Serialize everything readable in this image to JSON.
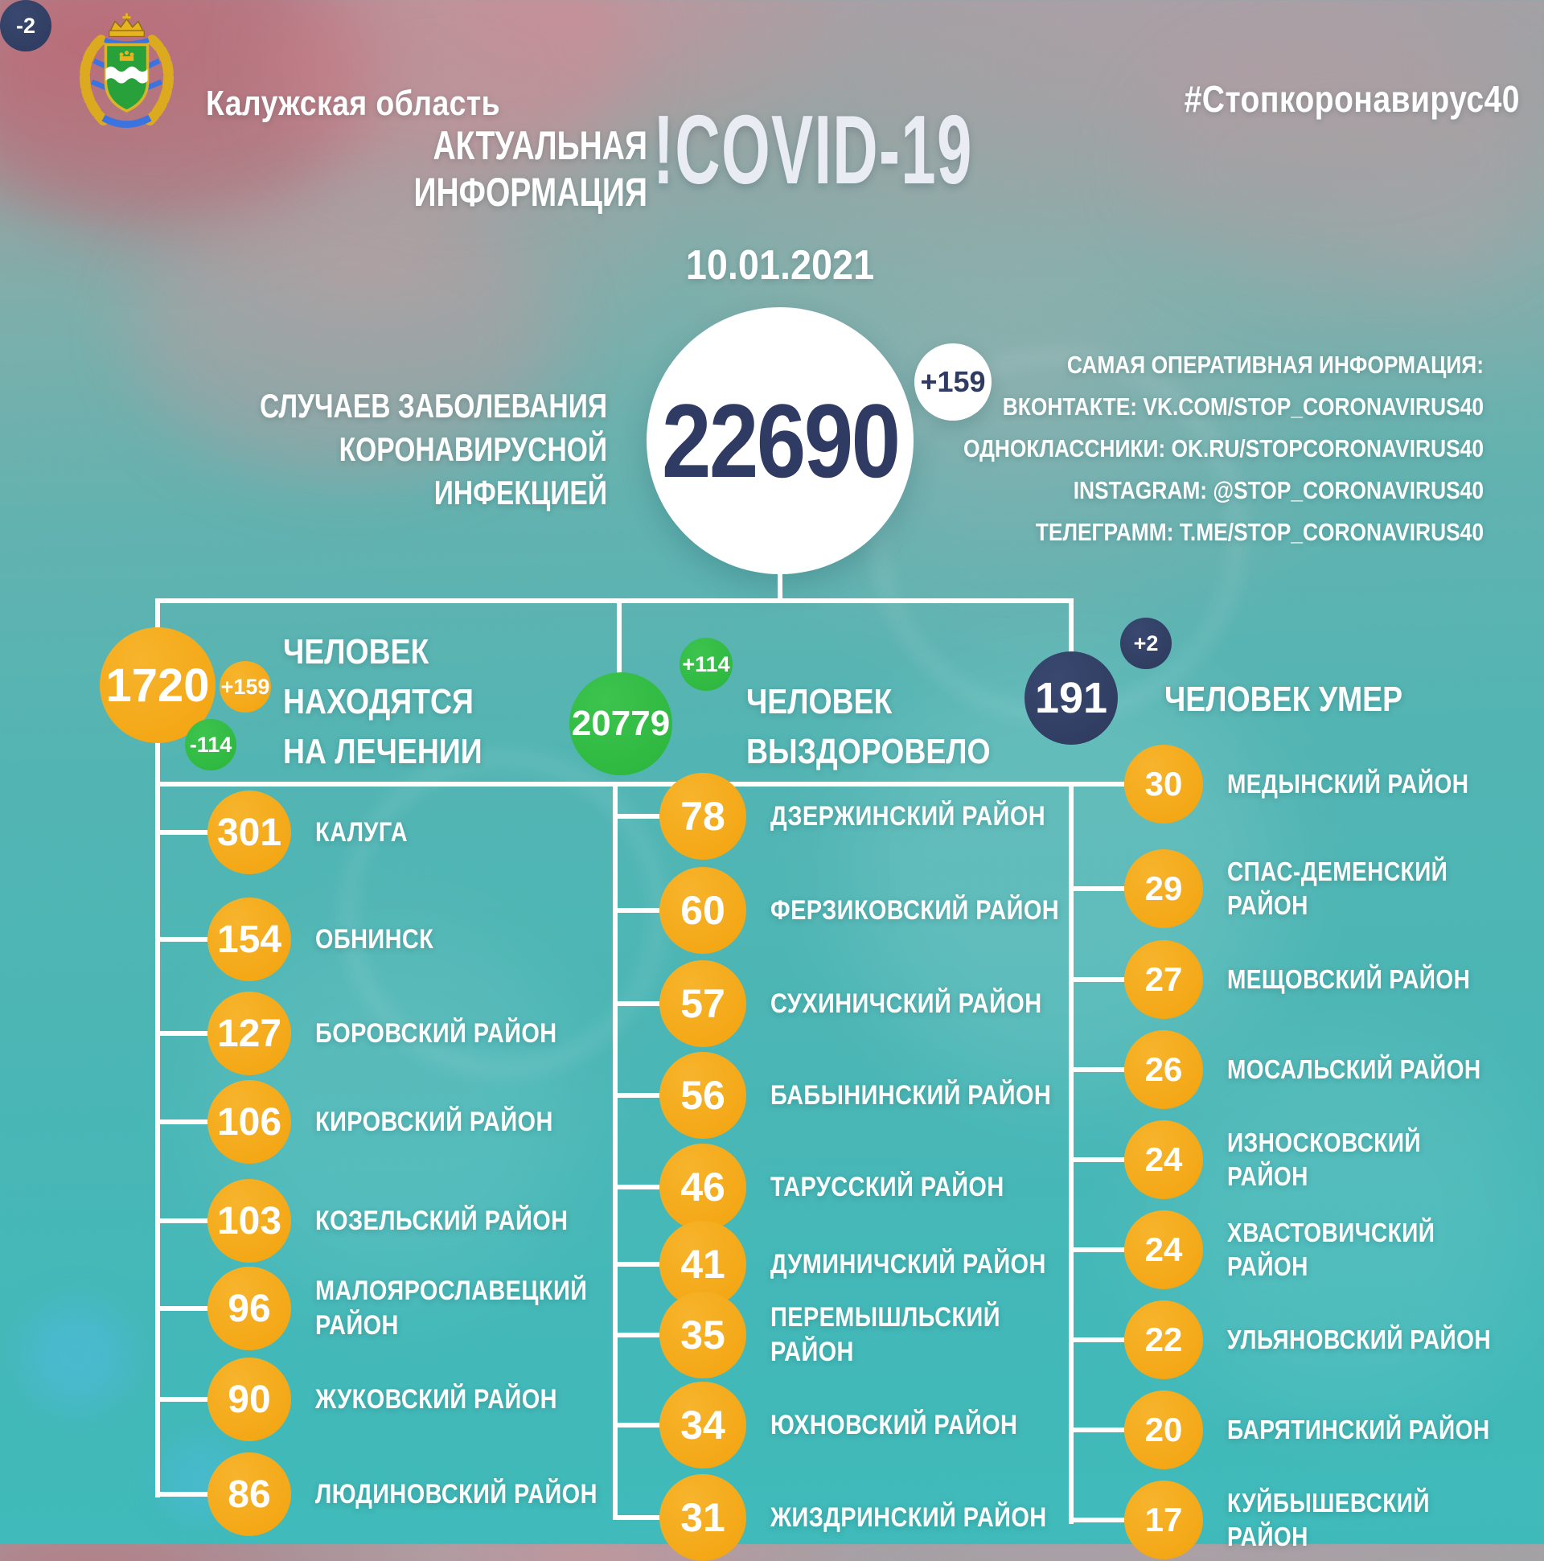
{
  "header": {
    "region": "Калужская область",
    "hashtag": "#Стопкоронавирус40",
    "coat_of_arms": "kaluga-oblast-coat-of-arms"
  },
  "title": {
    "line1": "АКТУАЛЬНАЯ",
    "line2": "ИНФОРМАЦИЯ",
    "covid": "!COVID-19",
    "date": "10.01.2021"
  },
  "total": {
    "value": "22690",
    "delta": "+159",
    "label": "СЛУЧАЕВ ЗАБОЛЕВАНИЯ\nКОРОНАВИРУСНОЙ ИНФЕКЦИЕЙ"
  },
  "social": {
    "heading": "САМАЯ ОПЕРАТИВНАЯ ИНФОРМАЦИЯ:",
    "items": [
      "ВКОНТАКТЕ: VK.COM/STOP_CORONAVIRUS40",
      "ОДНОКЛАССНИКИ: OK.RU/STOPCORONAVIRUS40",
      "INSTAGRAM: @STOP_CORONAVIRUS40",
      "ТЕЛЕГРАММ: T.ME/STOP_CORONAVIRUS40"
    ]
  },
  "stats": {
    "treatment": {
      "value": "1720",
      "label": "ЧЕЛОВЕК\nНАХОДЯТСЯ\nНА ЛЕЧЕНИИ",
      "badges": [
        {
          "text": "+159",
          "color": "orange"
        },
        {
          "text": "-114",
          "color": "green"
        },
        {
          "text": "-2",
          "color": "navy"
        }
      ]
    },
    "recovered": {
      "value": "20779",
      "delta": "+114",
      "label": "ЧЕЛОВЕК\nВЫЗДОРОВЕЛО"
    },
    "deaths": {
      "value": "191",
      "delta": "+2",
      "label": "ЧЕЛОВЕК УМЕР"
    }
  },
  "districts": {
    "col1": [
      {
        "value": "301",
        "name": "КАЛУГА"
      },
      {
        "value": "154",
        "name": "ОБНИНСК"
      },
      {
        "value": "127",
        "name": "БОРОВСКИЙ РАЙОН"
      },
      {
        "value": "106",
        "name": "КИРОВСКИЙ РАЙОН"
      },
      {
        "value": "103",
        "name": "КОЗЕЛЬСКИЙ РАЙОН"
      },
      {
        "value": "96",
        "name": "МАЛОЯРОСЛАВЕЦКИЙ\nРАЙОН"
      },
      {
        "value": "90",
        "name": "ЖУКОВСКИЙ РАЙОН"
      },
      {
        "value": "86",
        "name": "ЛЮДИНОВСКИЙ РАЙОН"
      }
    ],
    "col2": [
      {
        "value": "78",
        "name": "ДЗЕРЖИНСКИЙ РАЙОН"
      },
      {
        "value": "60",
        "name": "ФЕРЗИКОВСКИЙ РАЙОН"
      },
      {
        "value": "57",
        "name": "СУХИНИЧСКИЙ РАЙОН"
      },
      {
        "value": "56",
        "name": "БАБЫНИНСКИЙ РАЙОН"
      },
      {
        "value": "46",
        "name": "ТАРУССКИЙ РАЙОН"
      },
      {
        "value": "41",
        "name": "ДУМИНИЧСКИЙ РАЙОН"
      },
      {
        "value": "35",
        "name": "ПЕРЕМЫШЛЬСКИЙ\nРАЙОН"
      },
      {
        "value": "34",
        "name": "ЮХНОВСКИЙ РАЙОН"
      },
      {
        "value": "31",
        "name": "ЖИЗДРИНСКИЙ РАЙОН"
      }
    ],
    "col3": [
      {
        "value": "30",
        "name": "МЕДЫНСКИЙ РАЙОН"
      },
      {
        "value": "29",
        "name": "СПАС-ДЕМЕНСКИЙ\nРАЙОН"
      },
      {
        "value": "27",
        "name": "МЕЩОВСКИЙ РАЙОН"
      },
      {
        "value": "26",
        "name": "МОСАЛЬСКИЙ РАЙОН"
      },
      {
        "value": "24",
        "name": "ИЗНОСКОВСКИЙ РАЙОН"
      },
      {
        "value": "24",
        "name": "ХВАСТОВИЧСКИЙ РАЙОН"
      },
      {
        "value": "22",
        "name": "УЛЬЯНОВСКИЙ РАЙОН"
      },
      {
        "value": "20",
        "name": "БАРЯТИНСКИЙ РАЙОН"
      },
      {
        "value": "17",
        "name": "КУЙБЫШЕВСКИЙ РАЙОН"
      }
    ]
  },
  "colors": {
    "orange": "#F2A30E",
    "green": "#2BB53C",
    "navy": "#2D3A5E",
    "number": "#2F3B63",
    "title": "#E9EDF3",
    "line": "#FFFFFF"
  }
}
